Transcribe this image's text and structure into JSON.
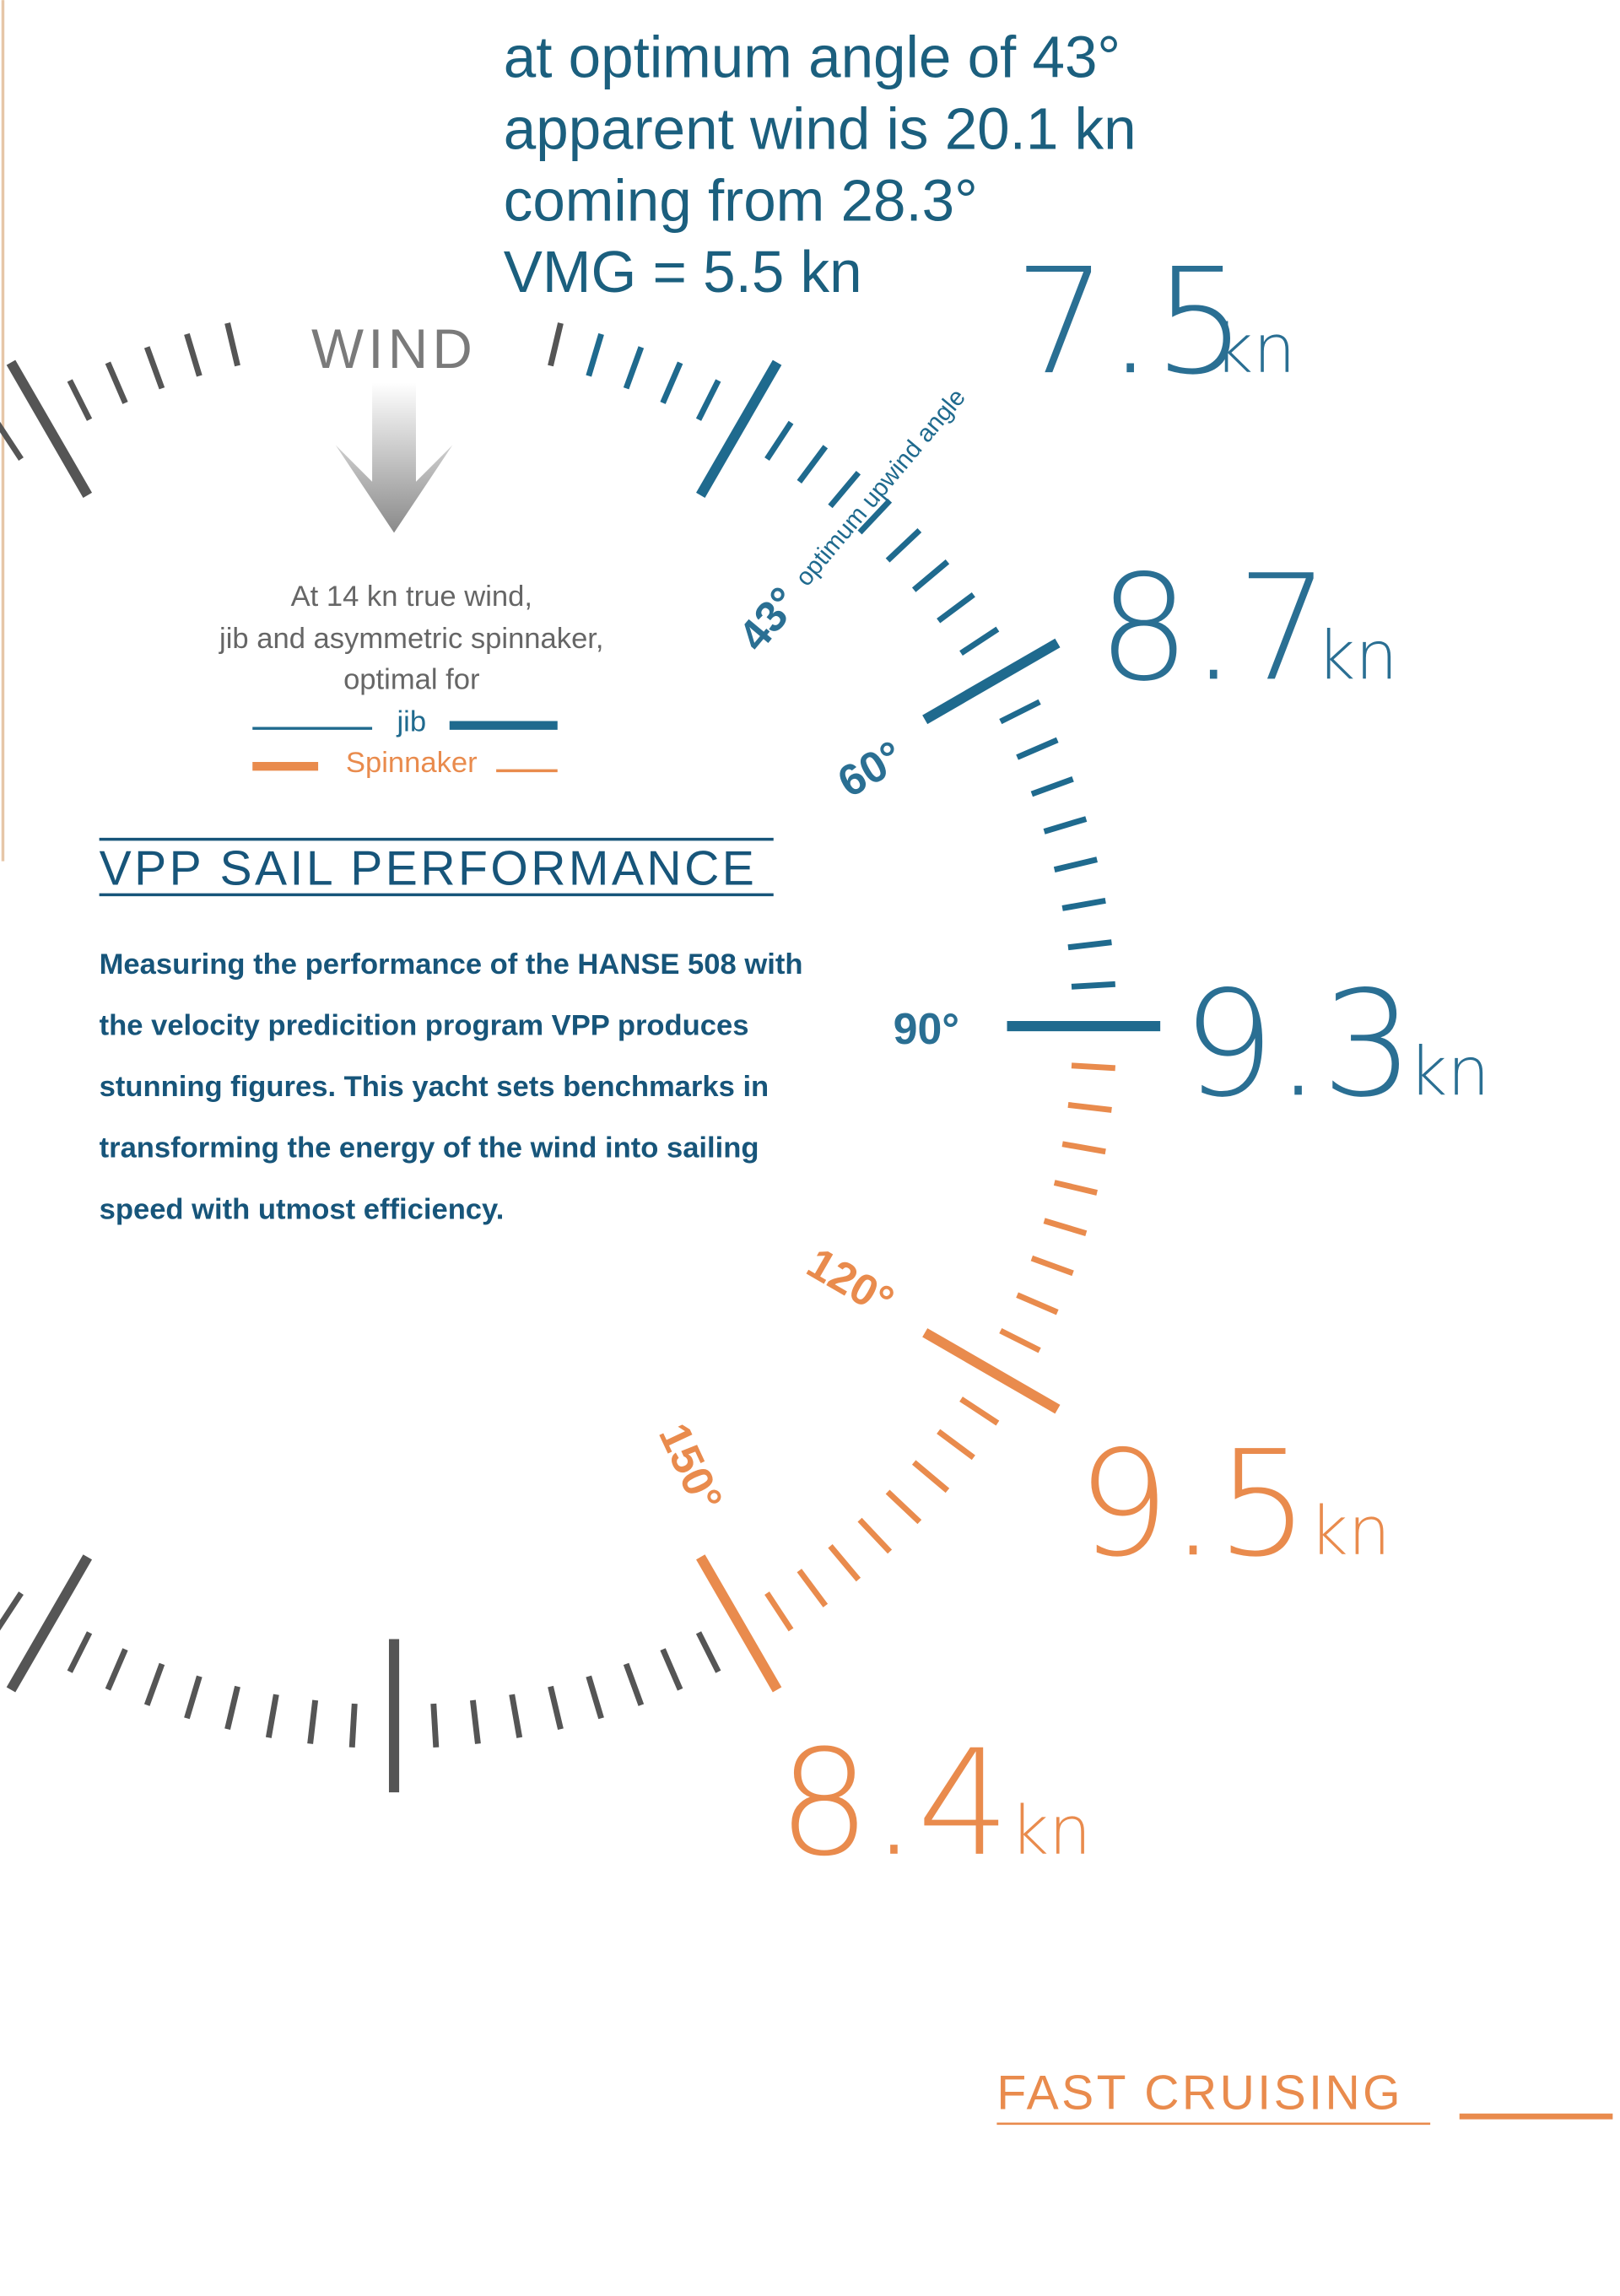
{
  "annotation": [
    "at optimum angle of 43°",
    "apparent wind is 20.1 kn",
    "coming from 28.3°",
    "VMG = 5.5 kn"
  ],
  "wind_label": "WIND",
  "legend": {
    "intro": [
      "At 14 kn true wind,",
      "jib and asymmetric spinnaker,",
      "optimal for"
    ],
    "jib": "jib",
    "spinnaker": "Spinnaker"
  },
  "section": {
    "title": "VPP SAIL PERFORMANCE",
    "body": [
      "Measuring the performance of the HANSE 508 with",
      "the velocity predicition program VPP produces",
      "stunning figures. This yacht sets benchmarks in",
      "transforming the energy of the wind into sailing",
      "speed with utmost efficiency."
    ]
  },
  "angles": {
    "optimum": "43°",
    "optimum_text": "optimum upwind angle",
    "a60": "60°",
    "a90": "90°",
    "a120": "120°",
    "a150": "150°"
  },
  "speeds": [
    {
      "value": "7.5",
      "unit": "kn"
    },
    {
      "value": "8.7",
      "unit": "kn"
    },
    {
      "value": "9.3",
      "unit": "kn"
    },
    {
      "value": "9.5",
      "unit": "kn"
    },
    {
      "value": "8.4",
      "unit": "kn"
    }
  ],
  "footer": "FAST CRUISING"
}
